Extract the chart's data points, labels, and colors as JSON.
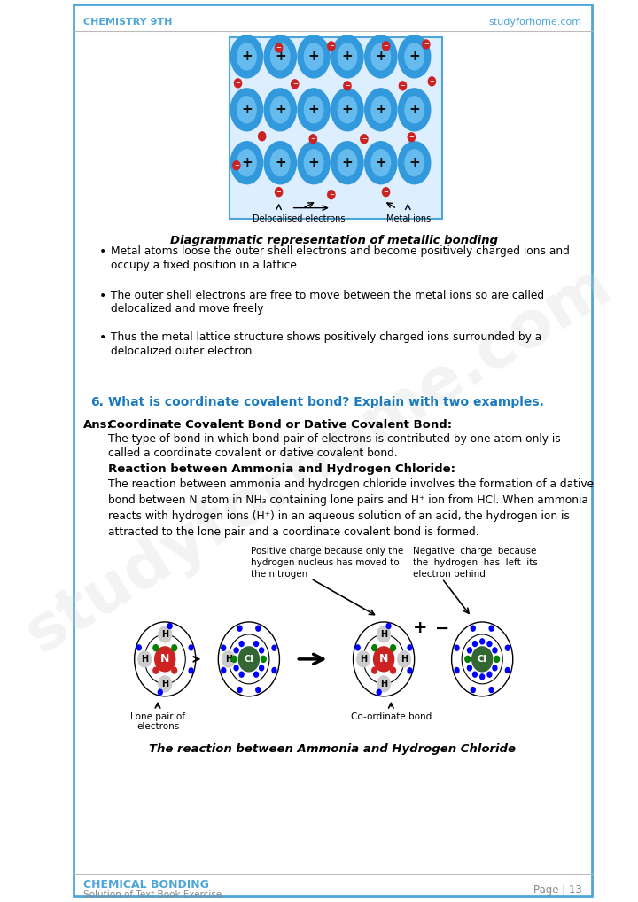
{
  "header_left": "CHEMISTRY 9TH",
  "header_right": "studyforhome.com",
  "footer_left_bold": "CHEMICAL BONDING",
  "footer_left_sub": "Solution of Text Book Exercise",
  "footer_right": "Page | 13",
  "header_color": "#4da6d9",
  "border_color": "#4da6d9",
  "bg_color": "#ffffff",
  "diagram_caption": "Diagrammatic representation of metallic bonding",
  "bullet_points": [
    "Metal atoms loose the outer shell electrons and become positively charged ions and occupy a fixed position in a lattice.",
    "The outer shell electrons are free to move between the metal ions so are called delocalized and move freely",
    "Thus the metal lattice structure shows positively charged ions surrounded by a delocalized outer electron."
  ],
  "q6_number": "6.",
  "q6_text": "What is coordinate covalent bond? Explain with two examples.",
  "ans_label": "Ans:",
  "ans_bold_title": "Coordinate Covalent Bond or Dative Covalent Bond",
  "ans_intro": "The type of bond in which bond pair of electrons is contributed by one atom only is called a coordinate covalent or dative covalent bond.",
  "reaction_title": "Reaction between Ammonia and Hydrogen Chloride",
  "diagram2_caption": "The reaction between Ammonia and Hydrogen Chloride",
  "ann_pos_charge_lines": [
    "Positive charge because only the",
    "hydrogen nucleus has moved to",
    "the nitrogen"
  ],
  "ann_neg_charge_lines": [
    "Negative  charge  because",
    "the  hydrogen  has  left  its",
    "electron behind"
  ],
  "ann_lone_pair": "Lone pair of\nelectrons",
  "ann_coord_bond": "Co-ordinate bond",
  "watermark": "studyforhome.com",
  "ion_color_outer": "#3399dd",
  "ion_color_inner": "#66bbee",
  "electron_color": "#cc2222",
  "n_color": "#cc2222",
  "cl_color": "#336633",
  "h_color": "#dddddd"
}
